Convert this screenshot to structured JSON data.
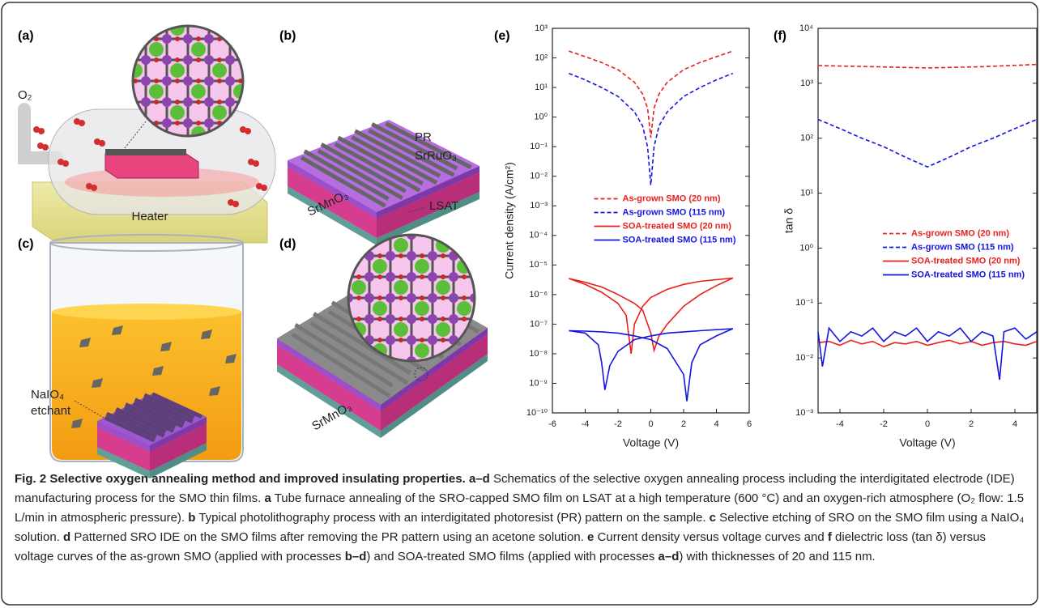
{
  "panels": {
    "a": {
      "label": "(a)",
      "gas": "O₂",
      "heater": "Heater"
    },
    "b": {
      "label": "(b)",
      "layers": [
        "PR",
        "SrRuO₃",
        "SrMnO₃",
        "LSAT"
      ]
    },
    "c": {
      "label": "(c)",
      "etchant": [
        "NaIO₄",
        "etchant"
      ]
    },
    "d": {
      "label": "(d)",
      "film": "SrMnO₃"
    }
  },
  "chart_data": [
    {
      "type": "line",
      "label": "(e)",
      "x_label": "Voltage (V)",
      "y_label": "Current density (A/cm²)",
      "log_y": true,
      "legend": "center",
      "xlim": [
        -6,
        6
      ],
      "xticks": [
        -6,
        -4,
        -2,
        0,
        2,
        4,
        6
      ],
      "ylim": [
        1e-10,
        1000
      ],
      "yticks": [
        {
          "value": 1e-10,
          "label": "10⁻¹⁰"
        },
        {
          "value": 1e-09,
          "label": "10⁻⁹"
        },
        {
          "value": 1e-08,
          "label": "10⁻⁸"
        },
        {
          "value": 1e-07,
          "label": "10⁻⁷"
        },
        {
          "value": 1e-06,
          "label": "10⁻⁶"
        },
        {
          "value": 1e-05,
          "label": "10⁻⁵"
        },
        {
          "value": 0.0001,
          "label": "10⁻⁴"
        },
        {
          "value": 0.001,
          "label": "10⁻³"
        },
        {
          "value": 0.01,
          "label": "10⁻²"
        },
        {
          "value": 0.1,
          "label": "10⁻¹"
        },
        {
          "value": 1,
          "label": "10⁰"
        },
        {
          "value": 10,
          "label": "10¹"
        },
        {
          "value": 100,
          "label": "10²"
        },
        {
          "value": 1000,
          "label": "10³"
        }
      ],
      "series": [
        {
          "name": "As-grown SMO (20 nm)",
          "color": "#e8201e",
          "dashed": true,
          "x": [
            -5,
            -4,
            -3,
            -2,
            -1,
            -0.5,
            -0.2,
            0,
            0.2,
            0.5,
            1,
            2,
            3,
            4,
            5
          ],
          "values": [
            170,
            110,
            70,
            40,
            15,
            6,
            2,
            0.2,
            2,
            6,
            15,
            40,
            70,
            110,
            170
          ]
        },
        {
          "name": "As-grown SMO (115 nm)",
          "color": "#1414e0",
          "dashed": true,
          "x": [
            -5,
            -4,
            -3,
            -2,
            -1,
            -0.5,
            -0.2,
            0,
            0.2,
            0.5,
            1,
            2,
            3,
            4,
            5
          ],
          "values": [
            30,
            18,
            10,
            5,
            1.5,
            0.5,
            0.1,
            0.005,
            0.1,
            0.5,
            1.5,
            5,
            10,
            18,
            30
          ]
        },
        {
          "name": "SOA-treated SMO (20 nm)",
          "color": "#e8201e",
          "dashed": false,
          "x": [
            -5,
            -4,
            -3,
            -2,
            -1.5,
            -1.2,
            -1,
            -0.5,
            0,
            1,
            2,
            3,
            4,
            5,
            4,
            3,
            2,
            1,
            0.5,
            0.2,
            0,
            -0.5,
            -1,
            -2,
            -3,
            -4,
            -5
          ],
          "values": [
            3.5e-06,
            2.2e-06,
            1.2e-06,
            5e-07,
            2e-07,
            1e-08,
            1e-07,
            4e-07,
            8e-07,
            1.5e-06,
            2.2e-06,
            2.8e-06,
            3.2e-06,
            3.6e-06,
            2e-06,
            1e-06,
            4e-07,
            1e-07,
            4e-08,
            1.3e-08,
            5e-08,
            3e-07,
            5e-07,
            1e-06,
            1.8e-06,
            2.6e-06,
            3.5e-06
          ]
        },
        {
          "name": "SOA-treated SMO (115 nm)",
          "color": "#1414e0",
          "dashed": false,
          "x": [
            -5,
            -4,
            -3.2,
            -3,
            -2.8,
            -2.5,
            -2,
            -1,
            0,
            1,
            2,
            3,
            4,
            5,
            4,
            3,
            2.5,
            2.2,
            2,
            1,
            0,
            -1,
            -2,
            -3,
            -4,
            -5
          ],
          "values": [
            6e-08,
            5e-08,
            2e-08,
            5e-09,
            6e-10,
            4e-09,
            1.2e-08,
            3e-08,
            4e-08,
            5e-08,
            5.5e-08,
            6e-08,
            6.5e-08,
            7e-08,
            4e-08,
            2e-08,
            5e-09,
            2.5e-10,
            2e-09,
            1.5e-08,
            3e-08,
            4e-08,
            5e-08,
            5.5e-08,
            5.8e-08,
            6e-08
          ]
        }
      ]
    },
    {
      "type": "line",
      "label": "(f)",
      "x_label": "Voltage (V)",
      "y_label": "tan δ",
      "log_y": true,
      "legend": "right",
      "xlim": [
        -5,
        5
      ],
      "xticks": [
        -4,
        -2,
        0,
        2,
        4
      ],
      "ylim": [
        0.001,
        10000
      ],
      "yticks": [
        {
          "value": 0.001,
          "label": "10⁻³"
        },
        {
          "value": 0.01,
          "label": "10⁻²"
        },
        {
          "value": 0.1,
          "label": "10⁻¹"
        },
        {
          "value": 1,
          "label": "10⁰"
        },
        {
          "value": 10,
          "label": "10¹"
        },
        {
          "value": 100,
          "label": "10²"
        },
        {
          "value": 1000,
          "label": "10³"
        },
        {
          "value": 10000,
          "label": "10⁴"
        }
      ],
      "series": [
        {
          "name": "As-grown SMO (20 nm)",
          "color": "#e8201e",
          "dashed": true,
          "x": [
            -5,
            -2.5,
            0,
            2.5,
            5
          ],
          "values": [
            2100,
            2000,
            1900,
            2000,
            2200
          ]
        },
        {
          "name": "As-grown SMO (115 nm)",
          "color": "#1414e0",
          "dashed": true,
          "x": [
            -5,
            -4,
            -3,
            -2,
            -1,
            0,
            1,
            2,
            3,
            4,
            5
          ],
          "values": [
            220,
            150,
            100,
            70,
            45,
            30,
            45,
            70,
            100,
            150,
            220
          ]
        },
        {
          "name": "SOA-treated SMO (20 nm)",
          "color": "#e8201e",
          "dashed": false,
          "x": [
            -5,
            -4.5,
            -4,
            -3.5,
            -3,
            -2.5,
            -2,
            -1.5,
            -1,
            -0.5,
            0,
            0.5,
            1,
            1.5,
            2,
            2.5,
            3,
            3.5,
            4,
            4.5,
            5
          ],
          "values": [
            0.019,
            0.02,
            0.017,
            0.021,
            0.018,
            0.02,
            0.016,
            0.019,
            0.018,
            0.02,
            0.017,
            0.019,
            0.021,
            0.018,
            0.02,
            0.017,
            0.019,
            0.02,
            0.018,
            0.017,
            0.02
          ]
        },
        {
          "name": "SOA-treated SMO (115 nm)",
          "color": "#1414e0",
          "dashed": false,
          "x": [
            -5,
            -4.8,
            -4.5,
            -4,
            -3.5,
            -3,
            -2.5,
            -2,
            -1.5,
            -1,
            -0.5,
            0,
            0.5,
            1,
            1.5,
            2,
            2.5,
            3,
            3.3,
            3.5,
            4,
            4.5,
            5
          ],
          "values": [
            0.03,
            0.007,
            0.035,
            0.02,
            0.03,
            0.025,
            0.035,
            0.02,
            0.03,
            0.025,
            0.035,
            0.02,
            0.03,
            0.025,
            0.035,
            0.02,
            0.03,
            0.025,
            0.004,
            0.03,
            0.035,
            0.022,
            0.03
          ]
        }
      ]
    }
  ],
  "caption": {
    "title": "Fig. 2 Selective oxygen annealing method and improved insulating properties.",
    "segments": [
      "a–d",
      " Schematics of the selective oxygen annealing process including the interdigitated electrode (IDE) manufacturing process for the SMO thin films. ",
      "a",
      " Tube furnace annealing of the SRO-capped SMO film on LSAT at a high temperature (600 °C) and an oxygen-rich atmosphere (O₂ flow: 1.5 L/min in atmospheric pressure). ",
      "b",
      " Typical photolithography process with an interdigitated photoresist (PR) pattern on the sample. ",
      "c",
      " Selective etching of SRO on the SMO film using a NaIO₄ solution. ",
      "d",
      " Patterned SRO IDE on the SMO films after removing the PR pattern using an acetone solution. ",
      "e",
      " Current density versus voltage curves and ",
      "f",
      " dielectric loss (tan δ) versus voltage curves of the as-grown SMO (applied with processes ",
      "b–d",
      ") and SOA-treated SMO films (applied with processes ",
      "a–d",
      ") with thicknesses of 20 and 115 nm."
    ]
  }
}
